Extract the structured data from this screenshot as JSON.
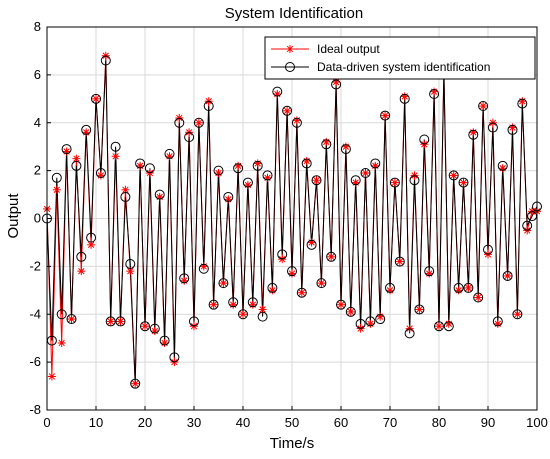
{
  "chart_data": {
    "type": "line",
    "title": "System Identification",
    "xlabel": "Time/s",
    "ylabel": "Output",
    "xlim": [
      0,
      100
    ],
    "ylim": [
      -8,
      8
    ],
    "xticks": [
      0,
      10,
      20,
      30,
      40,
      50,
      60,
      70,
      80,
      90,
      100
    ],
    "yticks": [
      -8,
      -6,
      -4,
      -2,
      0,
      2,
      4,
      6,
      8
    ],
    "grid": true,
    "legend_position": "top-right",
    "series": [
      {
        "name": "Ideal output",
        "color": "#ff0000",
        "marker": "asterisk",
        "x": [
          0,
          1,
          2,
          3,
          4,
          5,
          6,
          7,
          8,
          9,
          10,
          11,
          12,
          13,
          14,
          15,
          16,
          17,
          18,
          19,
          20,
          21,
          22,
          23,
          24,
          25,
          26,
          27,
          28,
          29,
          30,
          31,
          32,
          33,
          34,
          35,
          36,
          37,
          38,
          39,
          40,
          41,
          42,
          43,
          44,
          45,
          46,
          47,
          48,
          49,
          50,
          51,
          52,
          53,
          54,
          55,
          56,
          57,
          58,
          59,
          60,
          61,
          62,
          63,
          64,
          65,
          66,
          67,
          68,
          69,
          70,
          71,
          72,
          73,
          74,
          75,
          76,
          77,
          78,
          79,
          80,
          81,
          82,
          83,
          84,
          85,
          86,
          87,
          88,
          89,
          90,
          91,
          92,
          93,
          94,
          95,
          96,
          97,
          98,
          99,
          100
        ],
        "y": [
          0.4,
          -6.6,
          1.2,
          -5.2,
          2.8,
          -4.2,
          2.5,
          -2.2,
          3.6,
          -1.1,
          5.0,
          1.8,
          6.8,
          -4.3,
          2.6,
          -4.3,
          1.2,
          -2.2,
          -6.9,
          2.2,
          -4.5,
          1.9,
          -4.7,
          0.9,
          -5.2,
          2.6,
          -6.0,
          4.2,
          -2.6,
          3.6,
          -4.5,
          4.0,
          -2.0,
          4.9,
          -3.6,
          1.9,
          -2.7,
          0.8,
          -3.6,
          2.2,
          -4.0,
          1.4,
          -3.6,
          2.3,
          -3.8,
          1.7,
          -3.0,
          5.2,
          -1.7,
          4.5,
          -2.3,
          4.1,
          -3.1,
          2.4,
          -1.0,
          1.6,
          -2.7,
          3.2,
          -1.6,
          5.7,
          -3.6,
          3.0,
          -3.9,
          1.5,
          -4.6,
          1.9,
          -4.4,
          2.2,
          -4.1,
          4.3,
          -3.0,
          1.5,
          -1.8,
          5.1,
          -4.6,
          1.8,
          -3.8,
          3.1,
          -2.3,
          5.3,
          -4.5,
          6.1,
          -4.4,
          1.8,
          -3.0,
          1.5,
          -2.9,
          3.6,
          -3.3,
          4.7,
          -1.5,
          4.0,
          -4.4,
          2.1,
          -2.4,
          3.8,
          -4.0,
          4.9,
          -0.5,
          0.3,
          0.3
        ]
      },
      {
        "name": "Data-driven system identification",
        "color": "#000000",
        "marker": "circle",
        "x": [
          0,
          1,
          2,
          3,
          4,
          5,
          6,
          7,
          8,
          9,
          10,
          11,
          12,
          13,
          14,
          15,
          16,
          17,
          18,
          19,
          20,
          21,
          22,
          23,
          24,
          25,
          26,
          27,
          28,
          29,
          30,
          31,
          32,
          33,
          34,
          35,
          36,
          37,
          38,
          39,
          40,
          41,
          42,
          43,
          44,
          45,
          46,
          47,
          48,
          49,
          50,
          51,
          52,
          53,
          54,
          55,
          56,
          57,
          58,
          59,
          60,
          61,
          62,
          63,
          64,
          65,
          66,
          67,
          68,
          69,
          70,
          71,
          72,
          73,
          74,
          75,
          76,
          77,
          78,
          79,
          80,
          81,
          82,
          83,
          84,
          85,
          86,
          87,
          88,
          89,
          90,
          91,
          92,
          93,
          94,
          95,
          96,
          97,
          98,
          99,
          100
        ],
        "y": [
          0.0,
          -5.1,
          1.7,
          -4.0,
          2.9,
          -4.2,
          2.2,
          -1.6,
          3.7,
          -0.8,
          5.0,
          1.9,
          6.6,
          -4.3,
          3.0,
          -4.3,
          0.9,
          -1.9,
          -6.9,
          2.3,
          -4.5,
          2.1,
          -4.6,
          1.0,
          -5.1,
          2.7,
          -5.8,
          4.0,
          -2.5,
          3.4,
          -4.3,
          4.0,
          -2.1,
          4.7,
          -3.6,
          2.0,
          -2.7,
          0.9,
          -3.5,
          2.1,
          -4.0,
          1.5,
          -3.5,
          2.2,
          -4.1,
          1.8,
          -2.9,
          5.3,
          -1.5,
          4.5,
          -2.2,
          4.0,
          -3.1,
          2.3,
          -1.1,
          1.6,
          -2.7,
          3.1,
          -1.6,
          5.6,
          -3.6,
          2.9,
          -3.9,
          1.6,
          -4.4,
          1.9,
          -4.3,
          2.3,
          -4.2,
          4.3,
          -2.9,
          1.5,
          -1.8,
          5.0,
          -4.8,
          1.6,
          -3.8,
          3.3,
          -2.2,
          5.2,
          -4.5,
          6.2,
          -4.5,
          1.8,
          -2.9,
          1.5,
          -2.9,
          3.5,
          -3.3,
          4.7,
          -1.3,
          3.8,
          -4.3,
          2.2,
          -2.4,
          3.7,
          -4.0,
          4.8,
          -0.3,
          0.1,
          0.5
        ]
      }
    ]
  }
}
